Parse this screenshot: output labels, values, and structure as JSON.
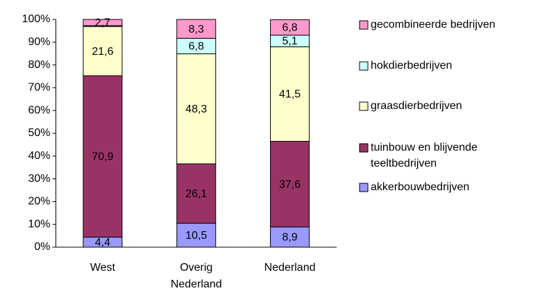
{
  "chart_data": {
    "type": "stacked_bar",
    "categories": [
      "West",
      "Overig Nederland",
      "Nederland"
    ],
    "series": [
      {
        "name": "akkerbouwbedrijven",
        "color": "#9999ff",
        "values": [
          4.4,
          10.5,
          8.9
        ],
        "value_labels": [
          "4,4",
          "10,5",
          "8,9"
        ]
      },
      {
        "name": "tuinbouw en blijvende teeltbedrijven",
        "color": "#993366",
        "values": [
          70.9,
          26.1,
          37.6
        ],
        "value_labels": [
          "70,9",
          "26,1",
          "37,6"
        ]
      },
      {
        "name": "graasdierbedrijven",
        "color": "#ffffcc",
        "values": [
          21.6,
          48.3,
          41.5
        ],
        "value_labels": [
          "21,6",
          "48,3",
          "41,5"
        ]
      },
      {
        "name": "hokdierbedrijven",
        "color": "#ccffff",
        "values": [
          0.4,
          6.8,
          5.1
        ],
        "value_labels": [
          null,
          "6,8",
          "5,1"
        ]
      },
      {
        "name": "gecombineerde bedrijven",
        "color": "#ff99cc",
        "values": [
          2.7,
          8.3,
          6.8
        ],
        "value_labels": [
          "2,7",
          "8,3",
          "6,8"
        ]
      }
    ],
    "ylim": [
      0,
      100
    ],
    "yticks": [
      {
        "value": 0,
        "label": "0%"
      },
      {
        "value": 10,
        "label": "10%"
      },
      {
        "value": 20,
        "label": "20%"
      },
      {
        "value": 30,
        "label": "30%"
      },
      {
        "value": 40,
        "label": "40%"
      },
      {
        "value": 50,
        "label": "50%"
      },
      {
        "value": 60,
        "label": "60%"
      },
      {
        "value": 70,
        "label": "70%"
      },
      {
        "value": 80,
        "label": "80%"
      },
      {
        "value": 90,
        "label": "90%"
      },
      {
        "value": 100,
        "label": "100%"
      }
    ],
    "grid": false,
    "legend": "right"
  }
}
